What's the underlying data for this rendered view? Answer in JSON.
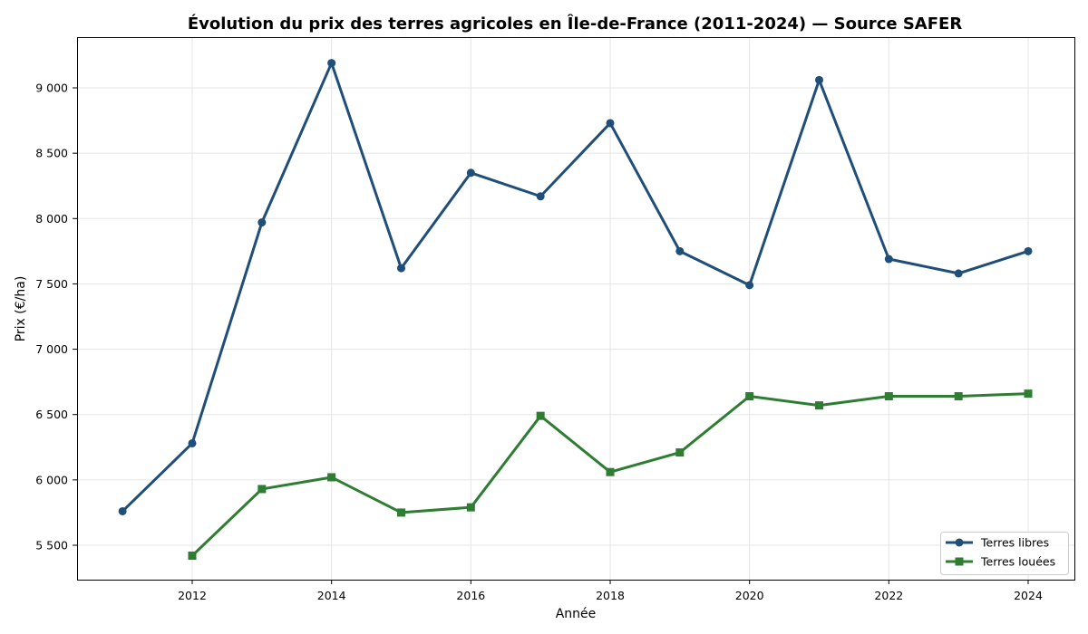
{
  "chart_data": {
    "type": "line",
    "title": "Évolution du prix des terres agricoles en Île-de-France (2011-2024) — Source SAFER",
    "xlabel": "Année",
    "ylabel": "Prix (€/ha)",
    "x": [
      2011,
      2012,
      2013,
      2014,
      2015,
      2016,
      2017,
      2018,
      2019,
      2020,
      2021,
      2022,
      2023,
      2024
    ],
    "xticks": [
      2012,
      2014,
      2016,
      2018,
      2020,
      2022,
      2024
    ],
    "yticks": [
      5500,
      6000,
      6500,
      7000,
      7500,
      8000,
      8500,
      9000
    ],
    "ytick_labels": [
      "5 500",
      "6 000",
      "6 500",
      "7 000",
      "7 500",
      "8 000",
      "8 500",
      "9 000"
    ],
    "xlim": [
      2010.35,
      2024.65
    ],
    "ylim": [
      5240,
      9380
    ],
    "grid": true,
    "legend_position": "lower right",
    "series": [
      {
        "name": "Terres libres",
        "color": "#1f4e79",
        "marker": "circle",
        "x": [
          2011,
          2012,
          2013,
          2014,
          2015,
          2016,
          2017,
          2018,
          2019,
          2020,
          2021,
          2022,
          2023,
          2024
        ],
        "values": [
          5760,
          6280,
          7970,
          9190,
          7620,
          8350,
          8170,
          8730,
          7750,
          7490,
          9060,
          7690,
          7580,
          7750
        ]
      },
      {
        "name": "Terres louées",
        "color": "#2e7d32",
        "marker": "square",
        "x": [
          2012,
          2013,
          2014,
          2015,
          2016,
          2017,
          2018,
          2019,
          2020,
          2021,
          2022,
          2023,
          2024
        ],
        "values": [
          5420,
          5930,
          6020,
          5750,
          5790,
          6490,
          6060,
          6210,
          6640,
          6570,
          6640,
          6640,
          6660
        ]
      }
    ]
  }
}
